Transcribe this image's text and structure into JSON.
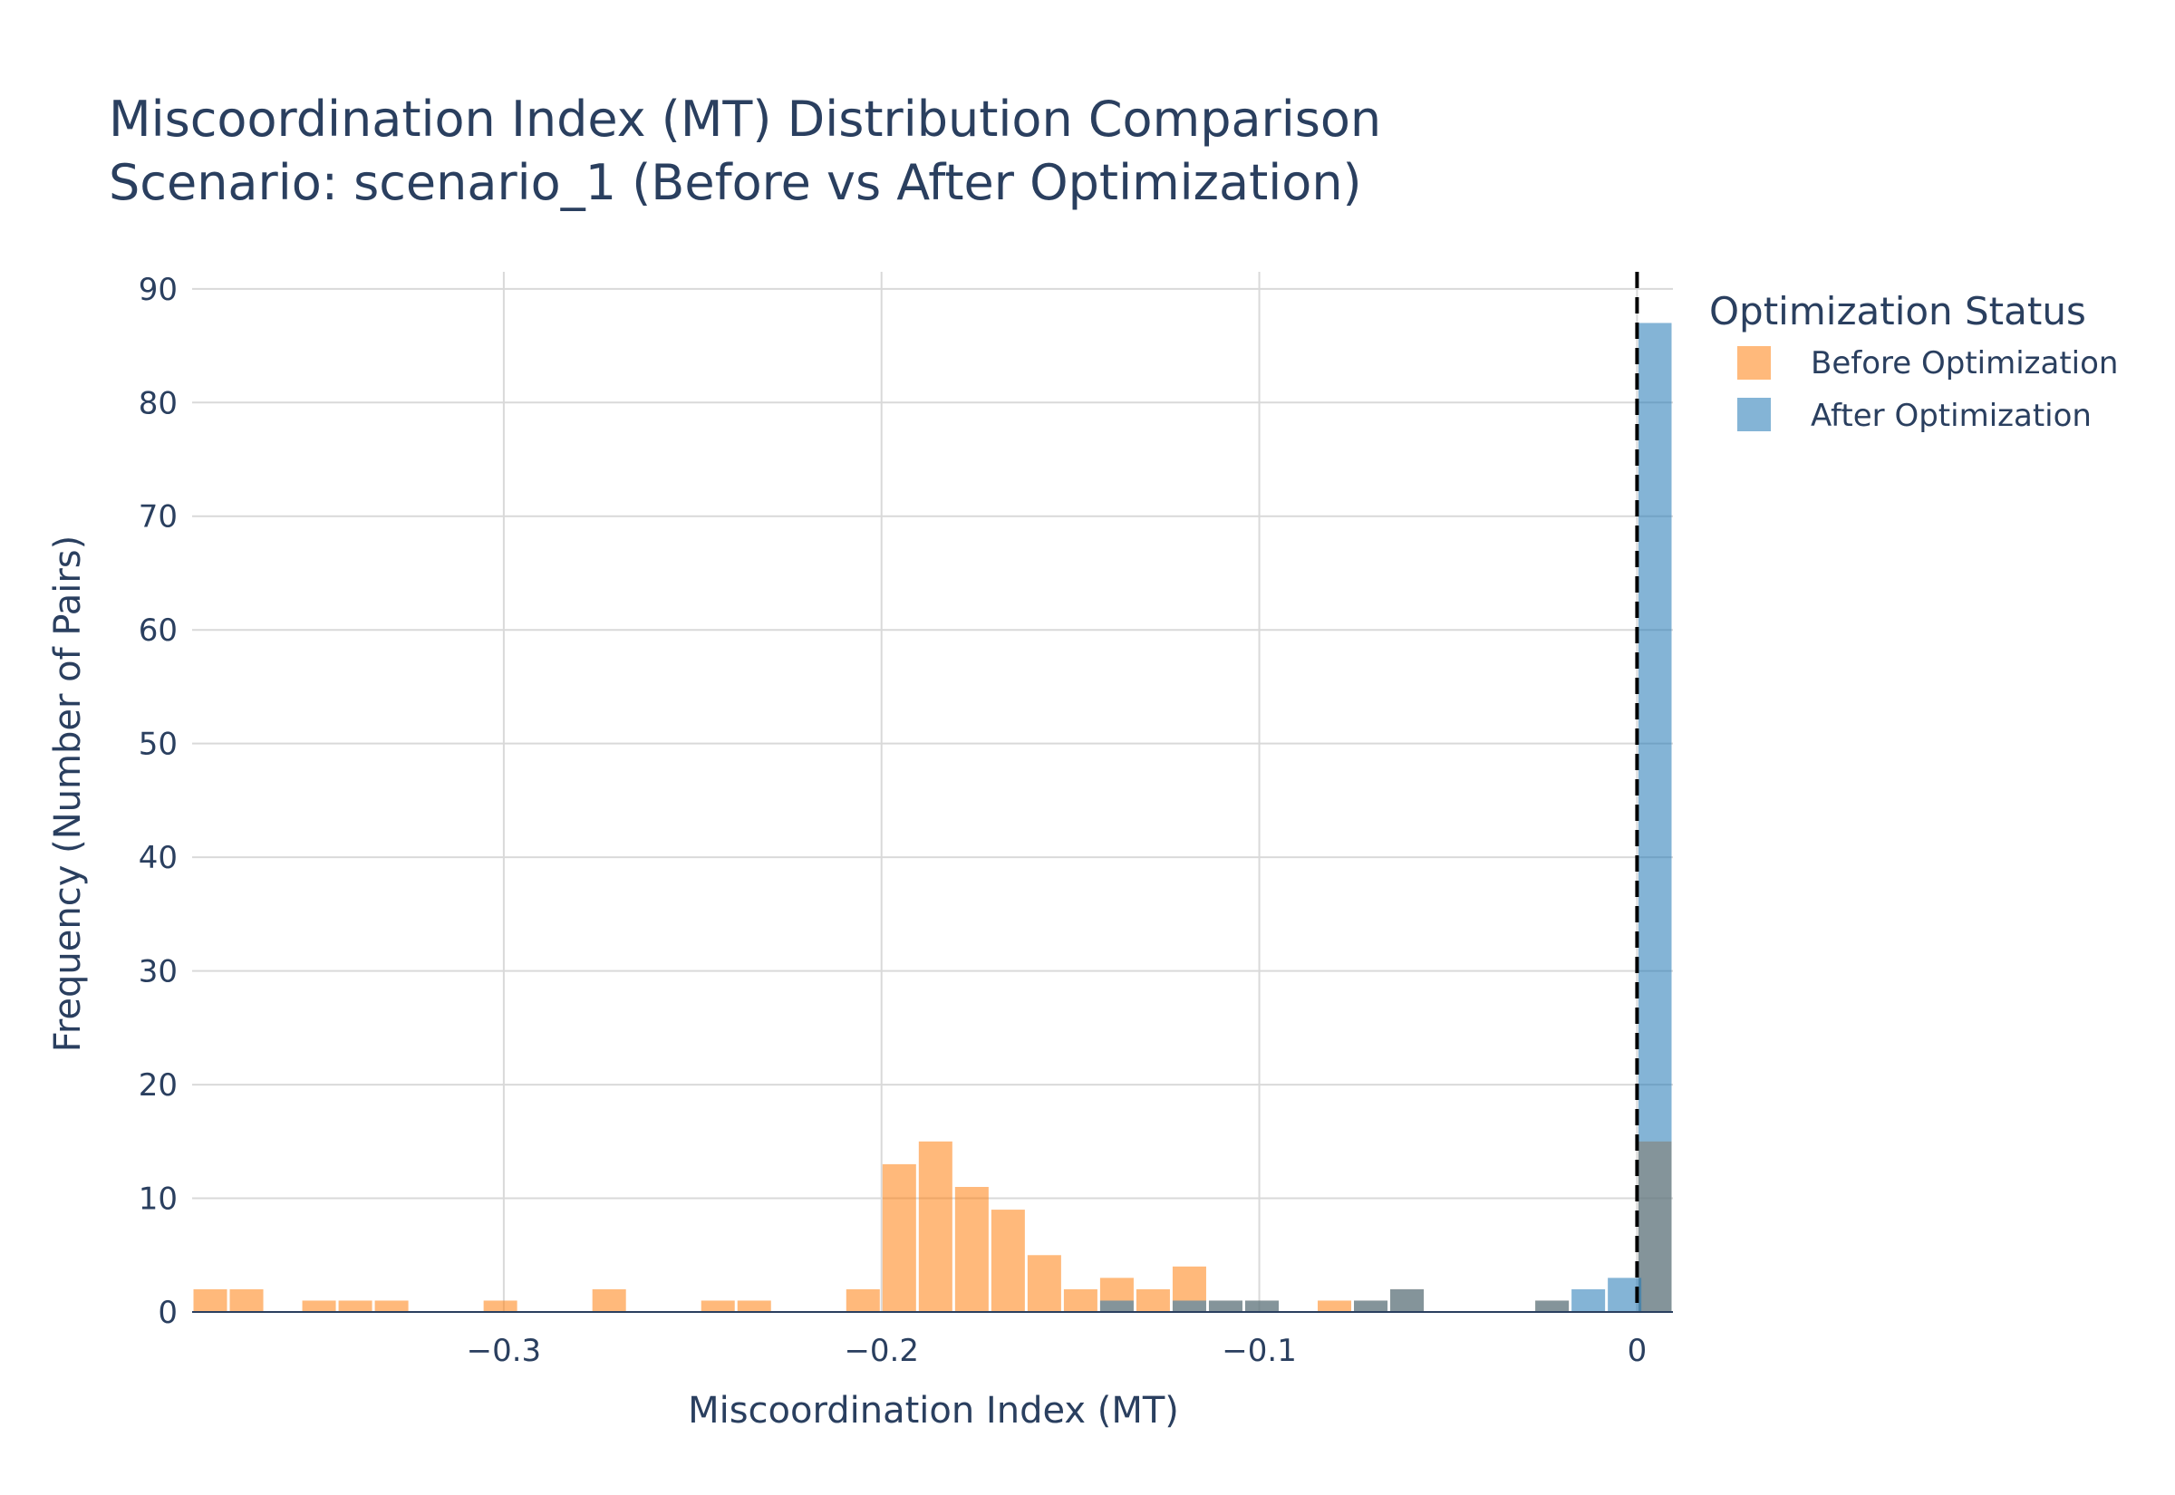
{
  "chart_data": {
    "type": "histogram",
    "title_lines": [
      "Miscoordination Index (MT) Distribution Comparison",
      "Scenario: scenario_1 (Before vs After Optimization)"
    ],
    "xlabel": "Miscoordination Index (MT)",
    "ylabel": "Frequency (Number of Pairs)",
    "xlim": [
      -0.3825,
      0.0095
    ],
    "ylim": [
      0,
      91.5
    ],
    "x_ticks": [
      -0.3,
      -0.2,
      -0.1,
      0
    ],
    "x_tick_labels": [
      "−0.3",
      "−0.2",
      "−0.1",
      "0"
    ],
    "y_ticks": [
      0,
      10,
      20,
      30,
      40,
      50,
      60,
      70,
      80,
      90
    ],
    "y_tick_labels": [
      "0",
      "10",
      "20",
      "30",
      "40",
      "50",
      "60",
      "70",
      "80",
      "90"
    ],
    "bin_width": 0.0096,
    "barmode": "overlay",
    "reference_line_x": 0,
    "legend": {
      "title": "Optimization Status",
      "position": "top-right-outside"
    },
    "series": [
      {
        "name": "Before Optimization",
        "color": "#ff7f0e",
        "opacity": 0.55,
        "bins": [
          {
            "x0": -0.3825,
            "count": 2
          },
          {
            "x0": -0.3729,
            "count": 2
          },
          {
            "x0": -0.3537,
            "count": 1
          },
          {
            "x0": -0.3441,
            "count": 1
          },
          {
            "x0": -0.3345,
            "count": 1
          },
          {
            "x0": -0.3057,
            "count": 1
          },
          {
            "x0": -0.2769,
            "count": 2
          },
          {
            "x0": -0.2481,
            "count": 1
          },
          {
            "x0": -0.2385,
            "count": 1
          },
          {
            "x0": -0.2097,
            "count": 2
          },
          {
            "x0": -0.2001,
            "count": 13
          },
          {
            "x0": -0.1905,
            "count": 15
          },
          {
            "x0": -0.1809,
            "count": 11
          },
          {
            "x0": -0.1713,
            "count": 9
          },
          {
            "x0": -0.1617,
            "count": 5
          },
          {
            "x0": -0.1521,
            "count": 2
          },
          {
            "x0": -0.1425,
            "count": 3
          },
          {
            "x0": -0.1329,
            "count": 2
          },
          {
            "x0": -0.1233,
            "count": 4
          },
          {
            "x0": -0.1137,
            "count": 1
          },
          {
            "x0": -0.1041,
            "count": 1
          },
          {
            "x0": -0.0849,
            "count": 1
          },
          {
            "x0": -0.0753,
            "count": 1
          },
          {
            "x0": -0.0657,
            "count": 2
          },
          {
            "x0": -0.0273,
            "count": 1
          },
          {
            "x0": 0.0,
            "count": 15
          }
        ]
      },
      {
        "name": "After Optimization",
        "color": "#1f77b4",
        "opacity": 0.55,
        "bins": [
          {
            "x0": -0.1425,
            "count": 1
          },
          {
            "x0": -0.1233,
            "count": 1
          },
          {
            "x0": -0.1137,
            "count": 1
          },
          {
            "x0": -0.1041,
            "count": 1
          },
          {
            "x0": -0.0753,
            "count": 1
          },
          {
            "x0": -0.0657,
            "count": 2
          },
          {
            "x0": -0.0273,
            "count": 1
          },
          {
            "x0": -0.0177,
            "count": 2
          },
          {
            "x0": -0.0081,
            "count": 3
          },
          {
            "x0": 0.0,
            "count": 87
          }
        ]
      }
    ]
  }
}
